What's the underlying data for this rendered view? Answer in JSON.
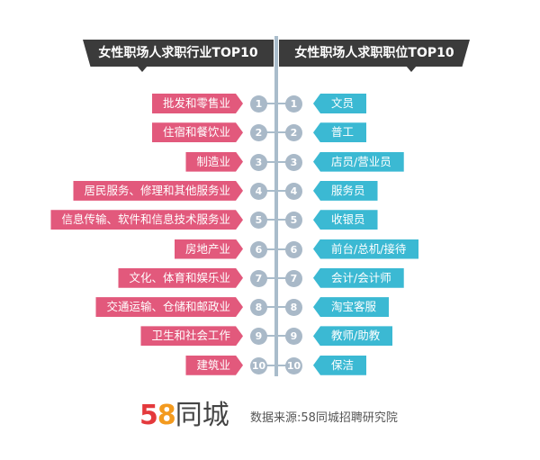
{
  "left_title": "女性职场人求职行业TOP10",
  "right_title": "女性职场人求职职位TOP10",
  "rows": [
    {
      "rank": "1",
      "industry": "批发和零售业",
      "position": "文员"
    },
    {
      "rank": "2",
      "industry": "住宿和餐饮业",
      "position": "普工"
    },
    {
      "rank": "3",
      "industry": "制造业",
      "position": "店员/营业员"
    },
    {
      "rank": "4",
      "industry": "居民服务、修理和其他服务业",
      "position": "服务员"
    },
    {
      "rank": "5",
      "industry": "信息传输、软件和信息技术服务业",
      "position": "收银员"
    },
    {
      "rank": "6",
      "industry": "房地产业",
      "position": "前台/总机/接待"
    },
    {
      "rank": "7",
      "industry": "文化、体育和娱乐业",
      "position": "会计/会计师"
    },
    {
      "rank": "8",
      "industry": "交通运输、仓储和邮政业",
      "position": "淘宝客服"
    },
    {
      "rank": "9",
      "industry": "卫生和社会工作",
      "position": "教师/助教"
    },
    {
      "rank": "10",
      "industry": "建筑业",
      "position": "保洁"
    }
  ],
  "logo": {
    "num5": "5",
    "num8": "8",
    "text": "同城"
  },
  "source": "数据来源:58同城招聘研究院",
  "colors": {
    "industry": "#e2597c",
    "position": "#3bb9d3",
    "header": "#3b3b3b",
    "rank": "#a9b9c8"
  }
}
